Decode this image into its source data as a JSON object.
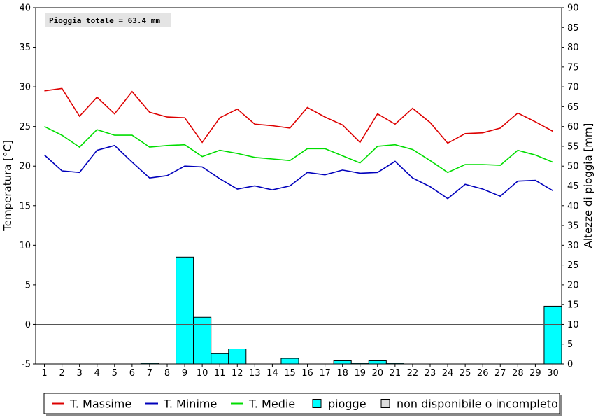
{
  "chart_data": {
    "type": "line",
    "annotation": "Pioggia totale = 63.4 mm",
    "ylabel_left": "Temperatura [°C]",
    "ylabel_right": "Altezze di pioggia [mm]",
    "x": [
      1,
      2,
      3,
      4,
      5,
      6,
      7,
      8,
      9,
      10,
      11,
      12,
      13,
      14,
      15,
      16,
      17,
      18,
      19,
      20,
      21,
      22,
      23,
      24,
      25,
      26,
      27,
      28,
      29,
      30
    ],
    "ylim_left": [
      -5,
      40
    ],
    "ylim_right": [
      0,
      90
    ],
    "yticks_left": [
      -5,
      0,
      5,
      10,
      15,
      20,
      25,
      30,
      35,
      40
    ],
    "yticks_right": [
      0,
      5,
      10,
      15,
      20,
      25,
      30,
      35,
      40,
      45,
      50,
      55,
      60,
      65,
      70,
      75,
      80,
      85,
      90
    ],
    "series": [
      {
        "name": "T. Massime",
        "color": "#dd0000",
        "axis": "left",
        "values": [
          29.5,
          29.8,
          26.3,
          28.7,
          26.6,
          29.4,
          26.8,
          26.2,
          26.1,
          23.0,
          26.1,
          27.2,
          25.3,
          25.1,
          24.8,
          27.4,
          26.2,
          25.2,
          23.0,
          26.6,
          25.3,
          27.3,
          25.5,
          22.9,
          24.1,
          24.2,
          24.8,
          26.7,
          25.6,
          24.4
        ]
      },
      {
        "name": "T. Minime",
        "color": "#0000bb",
        "axis": "left",
        "values": [
          21.4,
          19.4,
          19.2,
          22.0,
          22.6,
          20.5,
          18.5,
          18.8,
          20.0,
          19.9,
          18.4,
          17.1,
          17.5,
          17.0,
          17.5,
          19.2,
          18.9,
          19.5,
          19.1,
          19.2,
          20.6,
          18.5,
          17.4,
          15.9,
          17.7,
          17.1,
          16.2,
          18.1,
          18.2,
          16.9
        ]
      },
      {
        "name": "T. Medie",
        "color": "#00dd00",
        "axis": "left",
        "values": [
          25.0,
          23.9,
          22.4,
          24.6,
          23.9,
          23.9,
          22.4,
          22.6,
          22.7,
          21.2,
          22.0,
          21.6,
          21.1,
          20.9,
          20.7,
          22.2,
          22.2,
          21.3,
          20.4,
          22.5,
          22.7,
          22.1,
          20.7,
          19.2,
          20.2,
          20.2,
          20.1,
          22.0,
          21.4,
          20.5
        ]
      },
      {
        "name": "piogge",
        "color": "#00ffff",
        "axis": "right",
        "type": "bar",
        "values": [
          0,
          0,
          0,
          0,
          0,
          0,
          0.2,
          0,
          27.0,
          11.8,
          2.6,
          3.8,
          0,
          0,
          1.4,
          0,
          0,
          0.8,
          0.2,
          0.8,
          0.2,
          0,
          0,
          0,
          0,
          0,
          0,
          0,
          0,
          14.6
        ]
      }
    ],
    "legend": [
      {
        "label": "T. Massime",
        "color": "#dd0000",
        "kind": "line"
      },
      {
        "label": "T. Minime",
        "color": "#0000bb",
        "kind": "line"
      },
      {
        "label": "T. Medie",
        "color": "#00dd00",
        "kind": "line"
      },
      {
        "label": "piogge",
        "color": "#00ffff",
        "kind": "box"
      },
      {
        "label": "non disponibile o incompleto",
        "color": "#dddddd",
        "kind": "box"
      }
    ],
    "legend_position": "bottom",
    "grid": false,
    "zero_line": true
  }
}
